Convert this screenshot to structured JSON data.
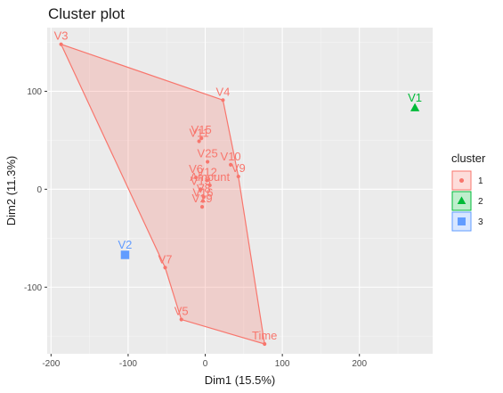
{
  "chart_data": {
    "type": "scatter",
    "title": "Cluster plot",
    "xlabel": "Dim1 (15.5%)",
    "ylabel": "Dim2 (11.3%)",
    "xlim": [
      -205,
      295
    ],
    "ylim": [
      -168,
      165
    ],
    "xticks": [
      -200,
      -100,
      0,
      100,
      200
    ],
    "yticks": [
      -100,
      0,
      100
    ],
    "grid": true,
    "legend": {
      "title": "cluster",
      "placement": "right",
      "entries": [
        {
          "label": "1",
          "color": "#F8766D",
          "shape": "circle"
        },
        {
          "label": "2",
          "color": "#00BA38",
          "shape": "triangle"
        },
        {
          "label": "3",
          "color": "#619CFF",
          "shape": "square"
        }
      ]
    },
    "points": [
      {
        "label": "V3",
        "x": -187,
        "y": 148,
        "cluster": "1"
      },
      {
        "label": "V4",
        "x": 23,
        "y": 91,
        "cluster": "1"
      },
      {
        "label": "V15",
        "x": -5,
        "y": 52,
        "cluster": "1"
      },
      {
        "label": "V11",
        "x": -8,
        "y": 49,
        "cluster": "1"
      },
      {
        "label": "V25",
        "x": 3,
        "y": 28,
        "cluster": "1"
      },
      {
        "label": "V10",
        "x": 33,
        "y": 25,
        "cluster": "1"
      },
      {
        "label": "V9",
        "x": 43,
        "y": 13,
        "cluster": "1"
      },
      {
        "label": "V6",
        "x": -12,
        "y": 12,
        "cluster": "1"
      },
      {
        "label": "V12",
        "x": 2,
        "y": 9,
        "cluster": "1"
      },
      {
        "label": "Amount",
        "x": 6,
        "y": 4,
        "cluster": "1"
      },
      {
        "label": "V13",
        "x": -6,
        "y": 0,
        "cluster": "1"
      },
      {
        "label": "V8",
        "x": -2,
        "y": -8,
        "cluster": "1"
      },
      {
        "label": "V16",
        "x": -3,
        "y": -12,
        "cluster": "1"
      },
      {
        "label": "V19",
        "x": -4,
        "y": -18,
        "cluster": "1"
      },
      {
        "label": "V7",
        "x": -52,
        "y": -80,
        "cluster": "1"
      },
      {
        "label": "V5",
        "x": -31,
        "y": -133,
        "cluster": "1"
      },
      {
        "label": "Time",
        "x": 77,
        "y": -158,
        "cluster": "1"
      },
      {
        "label": "V1",
        "x": 272,
        "y": 83,
        "cluster": "2"
      },
      {
        "label": "V2",
        "x": -104,
        "y": -67,
        "cluster": "3"
      }
    ],
    "hull": [
      "V3",
      "V4",
      "V9",
      "Time",
      "V5",
      "V7"
    ]
  }
}
